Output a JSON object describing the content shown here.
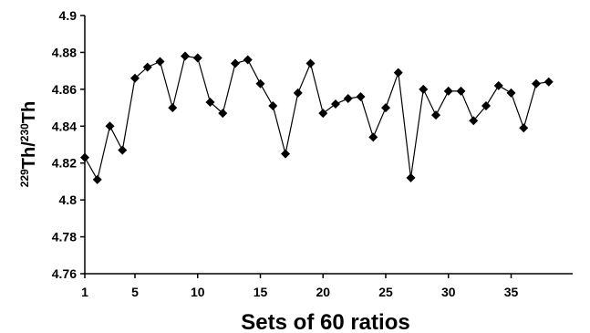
{
  "chart_data": {
    "type": "line",
    "xlabel": "Sets of 60 ratios",
    "ylabel": {
      "mass1": "229",
      "elem1": "Th/",
      "mass2": "230",
      "elem2": "Th"
    },
    "xlim": [
      1,
      37
    ],
    "ylim": [
      4.76,
      4.9
    ],
    "xticks": [
      1,
      5,
      10,
      15,
      20,
      25,
      30,
      35
    ],
    "yticks": [
      4.76,
      4.78,
      4.8,
      4.82,
      4.84,
      4.86,
      4.88,
      4.9
    ],
    "ytick_labels": [
      "4.76",
      "4.78",
      "4.8",
      "4.82",
      "4.84",
      "4.86",
      "4.88",
      "4.9"
    ],
    "grid": false,
    "marker": "diamond",
    "series": [
      {
        "x": [
          1,
          2,
          3,
          4,
          5,
          6,
          7,
          8,
          9,
          10,
          11,
          12,
          13,
          14,
          15,
          16,
          17,
          18,
          19,
          20,
          21,
          22,
          23,
          24,
          25,
          26,
          27,
          28,
          29,
          30,
          31,
          32,
          33,
          34,
          35,
          36,
          37,
          38
        ],
        "values": [
          4.823,
          4.811,
          4.84,
          4.827,
          4.866,
          4.872,
          4.875,
          4.85,
          4.878,
          4.877,
          4.853,
          4.847,
          4.874,
          4.876,
          4.863,
          4.851,
          4.825,
          4.858,
          4.874,
          4.847,
          4.852,
          4.855,
          4.856,
          4.834,
          4.85,
          4.869,
          4.812,
          4.86,
          4.846,
          4.859,
          4.859,
          4.843,
          4.851,
          4.862,
          4.858,
          4.839,
          4.863,
          4.864
        ]
      }
    ]
  }
}
